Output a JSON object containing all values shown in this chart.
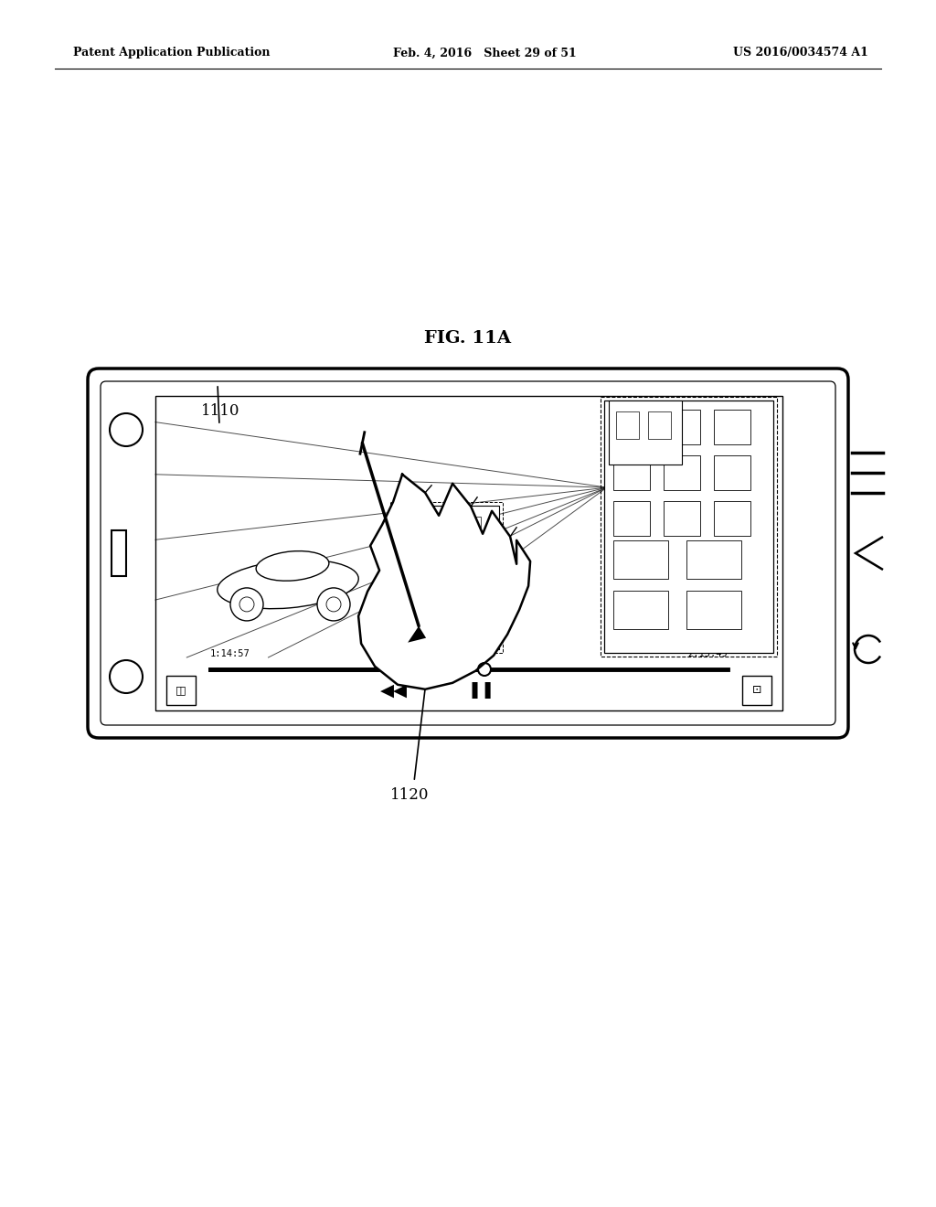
{
  "background_color": "#ffffff",
  "header_left": "Patent Application Publication",
  "header_mid": "Feb. 4, 2016   Sheet 29 of 51",
  "header_right": "US 2016/0034574 A1",
  "fig_label": "FIG. 11A",
  "label_1110": "1110",
  "label_1120": "1120"
}
